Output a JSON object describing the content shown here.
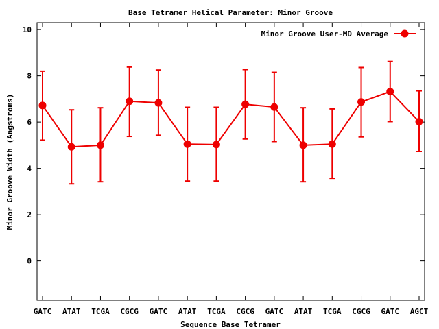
{
  "chart_data": {
    "type": "line",
    "title": "Base Tetramer Helical Parameter: Minor Groove",
    "xlabel": "Sequence Base Tetramer",
    "ylabel": "Minor Groove Width (Angstroms)",
    "categories": [
      "GATC",
      "ATAT",
      "TCGA",
      "CGCG",
      "GATC",
      "ATAT",
      "TCGA",
      "CGCG",
      "GATC",
      "ATAT",
      "TCGA",
      "CGCG",
      "GATC",
      "AGCT"
    ],
    "ylim": [
      -1.7,
      10.3
    ],
    "yticks": [
      0,
      2,
      4,
      6,
      8,
      10
    ],
    "legend_position": "top-right",
    "series": [
      {
        "name": "Minor Groove User-MD Average",
        "color": "#ee0000",
        "values": [
          6.72,
          4.93,
          5.0,
          6.9,
          6.83,
          5.05,
          5.03,
          6.77,
          6.65,
          5.0,
          5.05,
          6.87,
          7.32,
          6.02
        ],
        "err_low": [
          5.22,
          3.33,
          3.42,
          5.38,
          5.43,
          3.45,
          3.45,
          5.27,
          5.16,
          3.42,
          3.57,
          5.36,
          6.02,
          4.73
        ],
        "err_high": [
          8.2,
          6.53,
          6.62,
          8.38,
          8.25,
          6.64,
          6.64,
          8.27,
          8.15,
          6.62,
          6.57,
          8.36,
          8.62,
          7.35
        ]
      }
    ]
  }
}
